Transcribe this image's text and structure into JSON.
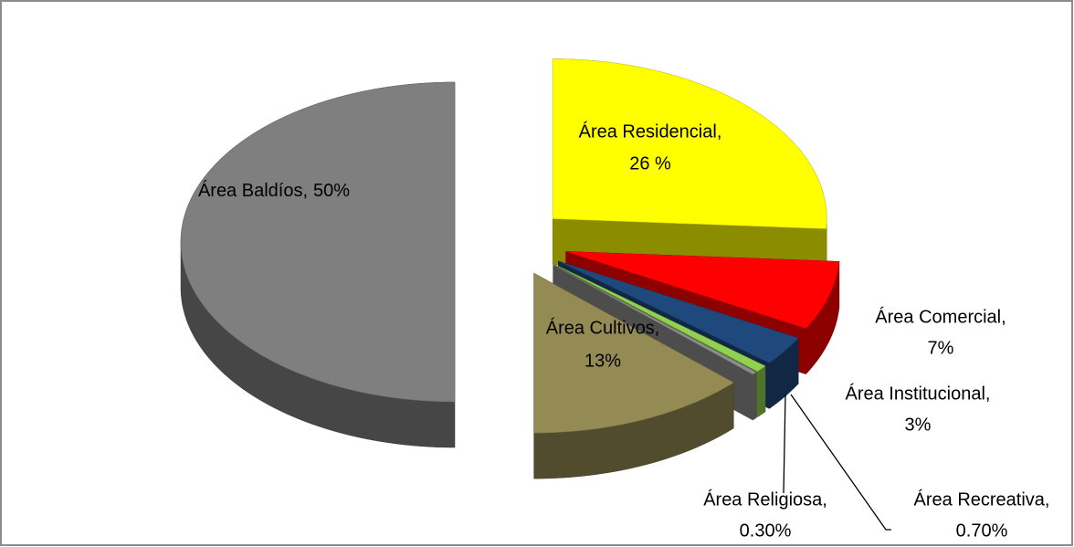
{
  "chart_data": {
    "type": "pie3d",
    "categories": [
      "Área Baldíos,",
      "Área Residencial,",
      "Área Comercial,",
      "Área Institucional,",
      "Área Recreativa,",
      "Área Religiosa,",
      "Área Cultivos,"
    ],
    "values": [
      50,
      26,
      7,
      3,
      0.7,
      0.3,
      13
    ],
    "value_labels": [
      "50%",
      "26 %",
      "7%",
      "3%",
      "0.70%",
      "0.30%",
      "13%"
    ],
    "colors": [
      "#7f7f7f",
      "#ffff00",
      "#ff0000",
      "#1f497d",
      "#92d050",
      "#8c8c8c",
      "#948a54"
    ]
  }
}
